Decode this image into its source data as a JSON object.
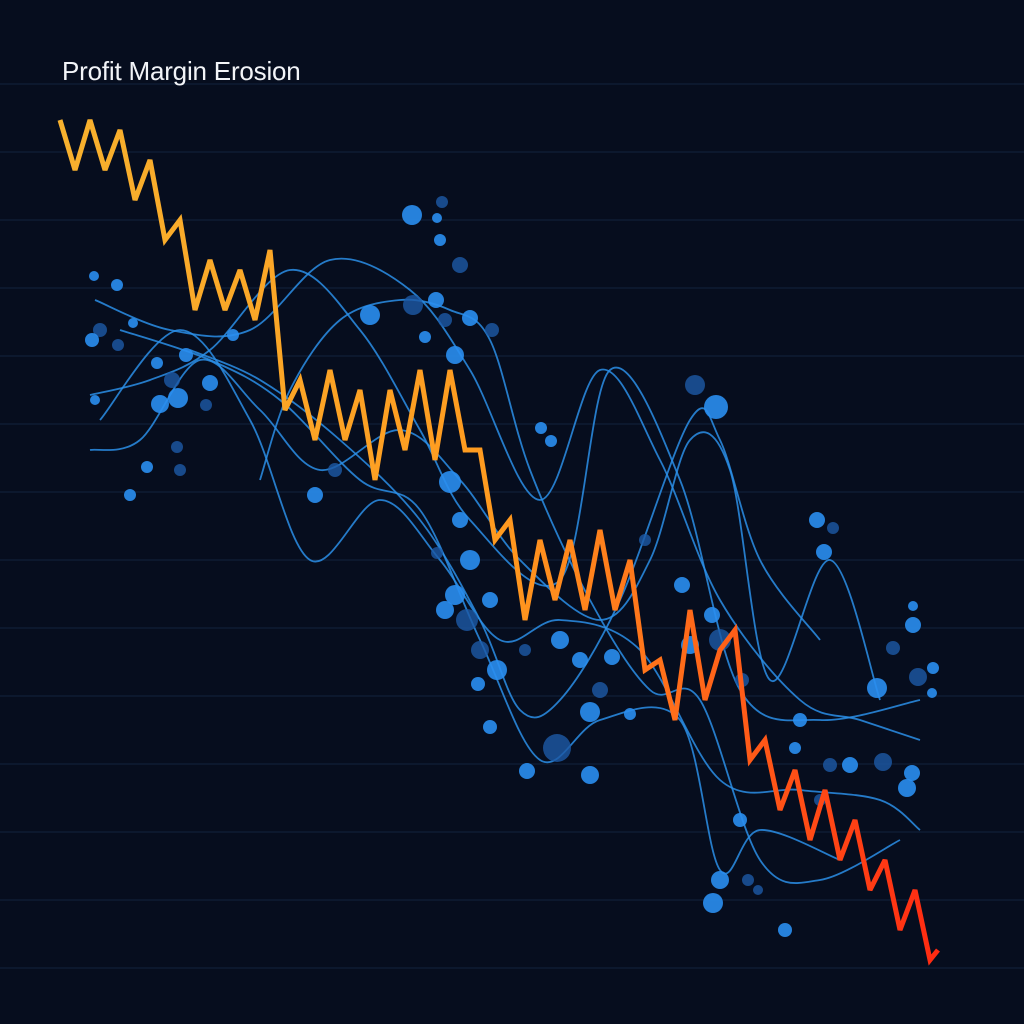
{
  "chart_data": {
    "type": "line",
    "title": "Profit Margin Erosion",
    "xlabel": "",
    "ylabel": "",
    "xlim": [
      0,
      96
    ],
    "ylim": [
      0,
      100
    ],
    "grid": true,
    "legend": "none",
    "colors": {
      "background": "#060d1e",
      "grid": "#12233d",
      "main_start": "#f7b12e",
      "main_mid": "#ff9a1f",
      "main_end": "#ff2a12",
      "curves": "#2b8fe8",
      "bubbles_bright": "#2a8ef0",
      "bubbles_dark": "#1d5aa6"
    },
    "main_series": {
      "x": [
        0,
        1.5,
        3,
        4.5,
        6,
        7.5,
        9,
        10.5,
        12,
        13.5,
        15,
        16.5,
        18,
        19.5,
        21,
        22.5,
        24,
        25.5,
        27,
        28.5,
        30,
        31.5,
        33,
        34.5,
        36,
        37.5,
        39,
        40.5,
        42,
        43.5,
        45,
        46.5,
        48,
        49.5,
        51,
        52.5,
        54,
        55.5,
        57,
        58.5,
        60,
        61.5,
        63,
        64.5,
        66,
        67.5,
        69,
        70.5,
        72,
        73.5,
        75,
        76.5,
        78,
        79.5,
        81,
        82.5,
        84,
        85.5,
        87,
        87.8
      ],
      "y": [
        88,
        83,
        88,
        83,
        87,
        80,
        84,
        76,
        78,
        69,
        74,
        69,
        73,
        68,
        75,
        59,
        62,
        56,
        63,
        56,
        61,
        52,
        61,
        55,
        63,
        54,
        63,
        55,
        55,
        46,
        48,
        38,
        46,
        40,
        46,
        39,
        47,
        39,
        44,
        33,
        34,
        28,
        39,
        30,
        35,
        37,
        24,
        26,
        19,
        23,
        16,
        21,
        14,
        18,
        11,
        14,
        7,
        11,
        4,
        5
      ]
    },
    "curves": [
      [
        [
          3.5,
          70
        ],
        [
          11,
          67
        ],
        [
          19,
          67
        ],
        [
          27,
          74
        ],
        [
          35,
          71
        ],
        [
          41,
          63
        ],
        [
          48,
          50
        ],
        [
          54,
          63
        ],
        [
          60,
          54
        ],
        [
          66,
          40
        ],
        [
          74,
          30
        ],
        [
          80,
          28
        ],
        [
          86,
          26
        ]
      ],
      [
        [
          3,
          60.5
        ],
        [
          9,
          62
        ],
        [
          15,
          65
        ],
        [
          23,
          73
        ],
        [
          30,
          67
        ],
        [
          36,
          57
        ],
        [
          41,
          48
        ],
        [
          50,
          42
        ],
        [
          55,
          63
        ],
        [
          62,
          52
        ],
        [
          68,
          31
        ],
        [
          76,
          28
        ],
        [
          86,
          30
        ]
      ],
      [
        [
          3,
          55
        ],
        [
          8,
          56
        ],
        [
          14,
          64
        ],
        [
          20,
          59
        ],
        [
          26,
          53
        ],
        [
          34,
          57
        ],
        [
          40,
          52
        ],
        [
          46,
          44
        ],
        [
          54,
          38
        ],
        [
          59,
          44
        ],
        [
          63,
          56
        ],
        [
          67,
          53
        ],
        [
          71,
          32
        ],
        [
          77,
          44
        ],
        [
          82,
          30
        ]
      ],
      [
        [
          4,
          58
        ],
        [
          12,
          67
        ],
        [
          19,
          58
        ],
        [
          25,
          44
        ],
        [
          32,
          50
        ],
        [
          38,
          44
        ],
        [
          44,
          36
        ],
        [
          50,
          38
        ],
        [
          58,
          35
        ],
        [
          66,
          22
        ],
        [
          74,
          21
        ],
        [
          82,
          20
        ],
        [
          86,
          17
        ]
      ],
      [
        [
          6,
          67
        ],
        [
          15,
          64
        ],
        [
          22,
          60
        ],
        [
          30,
          52
        ],
        [
          36,
          49
        ],
        [
          42,
          36
        ],
        [
          48,
          24
        ],
        [
          54,
          28
        ],
        [
          62,
          28
        ],
        [
          66,
          13
        ],
        [
          70,
          17
        ],
        [
          78,
          14
        ]
      ],
      [
        [
          20,
          52
        ],
        [
          23,
          61
        ],
        [
          28,
          68
        ],
        [
          34,
          70
        ],
        [
          39,
          69
        ],
        [
          43,
          66
        ],
        [
          47,
          53
        ],
        [
          53,
          40
        ],
        [
          59,
          31
        ],
        [
          64,
          30
        ],
        [
          70,
          14
        ],
        [
          76,
          12
        ],
        [
          84,
          16
        ]
      ],
      [
        [
          13,
          65
        ],
        [
          20,
          62
        ],
        [
          28,
          56
        ],
        [
          36,
          48
        ],
        [
          42,
          38
        ],
        [
          46,
          29
        ],
        [
          50,
          30
        ],
        [
          56,
          40
        ],
        [
          63,
          58
        ],
        [
          66,
          56
        ],
        [
          70,
          44
        ],
        [
          76,
          36
        ]
      ]
    ],
    "bubbles": [
      [
        35.2,
        78.5,
        10
      ],
      [
        38.2,
        79.8,
        6
      ],
      [
        37.7,
        78.2,
        5
      ],
      [
        38,
        76,
        6
      ],
      [
        40,
        73.5,
        8
      ],
      [
        3.4,
        72.4,
        5
      ],
      [
        5.7,
        71.5,
        6
      ],
      [
        4,
        67,
        7
      ],
      [
        3.2,
        66,
        7
      ],
      [
        7.3,
        67.7,
        5
      ],
      [
        5.8,
        65.5,
        6
      ],
      [
        9.7,
        63.7,
        6
      ],
      [
        12.6,
        64.5,
        7
      ],
      [
        11.2,
        62,
        8
      ],
      [
        10,
        59.6,
        9
      ],
      [
        11.8,
        60.2,
        10
      ],
      [
        14.6,
        59.5,
        6
      ],
      [
        15,
        61.7,
        8
      ],
      [
        3.5,
        60,
        5
      ],
      [
        11.7,
        55.3,
        6
      ],
      [
        8.7,
        53.3,
        6
      ],
      [
        7,
        50.5,
        6
      ],
      [
        12,
        53,
        6
      ],
      [
        17.3,
        66.5,
        6
      ],
      [
        31,
        68.5,
        10
      ],
      [
        35.3,
        69.5,
        10
      ],
      [
        37.6,
        70,
        8
      ],
      [
        41,
        68.2,
        8
      ],
      [
        43.2,
        67,
        7
      ],
      [
        39.5,
        64.5,
        9
      ],
      [
        36.5,
        66.3,
        6
      ],
      [
        38.5,
        68,
        7
      ],
      [
        48.1,
        57.2,
        6
      ],
      [
        49.1,
        55.9,
        6
      ],
      [
        63.5,
        61.5,
        10
      ],
      [
        65.6,
        59.3,
        12
      ],
      [
        75.7,
        48,
        8
      ],
      [
        77.3,
        47.2,
        6
      ],
      [
        76.4,
        44.8,
        8
      ],
      [
        25.5,
        50.5,
        8
      ],
      [
        27.5,
        53,
        7
      ],
      [
        39,
        51.8,
        11
      ],
      [
        40,
        48,
        8
      ],
      [
        37.7,
        44.7,
        6
      ],
      [
        41,
        44,
        10
      ],
      [
        39.5,
        40.5,
        10
      ],
      [
        40.7,
        38,
        11
      ],
      [
        38.5,
        39,
        9
      ],
      [
        43,
        40,
        8
      ],
      [
        42,
        35,
        9
      ],
      [
        43.7,
        33,
        10
      ],
      [
        41.8,
        31.6,
        7
      ],
      [
        46.5,
        35,
        6
      ],
      [
        50,
        36,
        9
      ],
      [
        52,
        34,
        8
      ],
      [
        54,
        31,
        8
      ],
      [
        53,
        28.8,
        10
      ],
      [
        57,
        28.6,
        6
      ],
      [
        49.7,
        25.2,
        14
      ],
      [
        46.7,
        22.9,
        8
      ],
      [
        43,
        27.3,
        7
      ],
      [
        58.5,
        46,
        6
      ],
      [
        62.2,
        41.5,
        8
      ],
      [
        65.2,
        38.5,
        8
      ],
      [
        66,
        36,
        11
      ],
      [
        63,
        35.5,
        9
      ],
      [
        55.2,
        34.3,
        8
      ],
      [
        68.2,
        32,
        7
      ],
      [
        74,
        28,
        7
      ],
      [
        73.5,
        25.2,
        6
      ],
      [
        77,
        23.5,
        7
      ],
      [
        79,
        23.5,
        8
      ],
      [
        81.7,
        31.2,
        10
      ],
      [
        83.3,
        35.2,
        7
      ],
      [
        85.3,
        37.5,
        8
      ],
      [
        85.3,
        39.4,
        5
      ],
      [
        85.8,
        32.3,
        9
      ],
      [
        87.3,
        33.2,
        6
      ],
      [
        87.2,
        30.7,
        5
      ],
      [
        82.3,
        23.8,
        9
      ],
      [
        85.2,
        22.7,
        8
      ],
      [
        84.7,
        21.2,
        9
      ],
      [
        76,
        20,
        6
      ],
      [
        68,
        18,
        7
      ],
      [
        66,
        12,
        9
      ],
      [
        68.8,
        12,
        6
      ],
      [
        65.3,
        9.7,
        10
      ],
      [
        72.5,
        7,
        7
      ],
      [
        69.8,
        11,
        5
      ],
      [
        53,
        22.5,
        9
      ]
    ]
  }
}
